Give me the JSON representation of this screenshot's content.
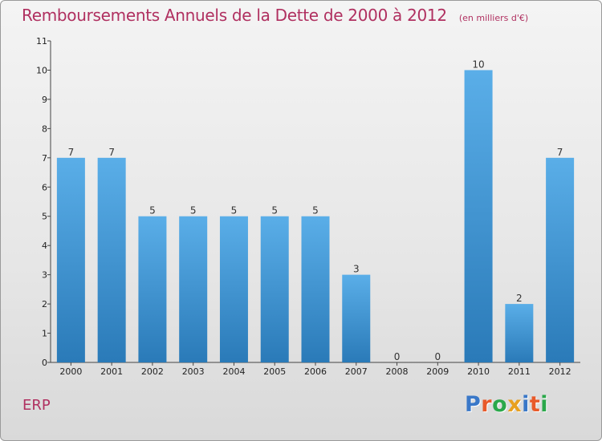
{
  "header": {
    "title": "Remboursements Annuels de la Dette de 2000 à 2012",
    "unit": "(en milliers d'€)"
  },
  "footer": {
    "commune": "ERP",
    "logo_letters": [
      "P",
      "r",
      "o",
      "x",
      "i",
      "t",
      "i"
    ]
  },
  "colors": {
    "title": "#b03060",
    "bar_top": "#5aaee8",
    "bar_bottom": "#2a7ab8",
    "logo": [
      "#3a78c8",
      "#e85a2a",
      "#2aa84a",
      "#e8a020",
      "#3a78c8",
      "#e85a2a",
      "#2aa84a"
    ]
  },
  "chart_data": {
    "type": "bar",
    "title": "Remboursements Annuels de la Dette de 2000 à 2012",
    "xlabel": "",
    "ylabel": "",
    "categories": [
      "2000",
      "2001",
      "2002",
      "2003",
      "2004",
      "2005",
      "2006",
      "2007",
      "2008",
      "2009",
      "2010",
      "2011",
      "2012"
    ],
    "values": [
      7,
      7,
      5,
      5,
      5,
      5,
      5,
      3,
      0,
      0,
      10,
      2,
      7
    ],
    "value_labels": [
      "7",
      "7",
      "5",
      "5",
      "5",
      "5",
      "5",
      "3",
      "0",
      "0",
      "10",
      "2",
      "7"
    ],
    "yticks": [
      "0",
      "1",
      "2",
      "3",
      "4",
      "5",
      "6",
      "7",
      "8",
      "9",
      "10",
      "11"
    ],
    "ylim": [
      0,
      11
    ],
    "grid": false
  }
}
